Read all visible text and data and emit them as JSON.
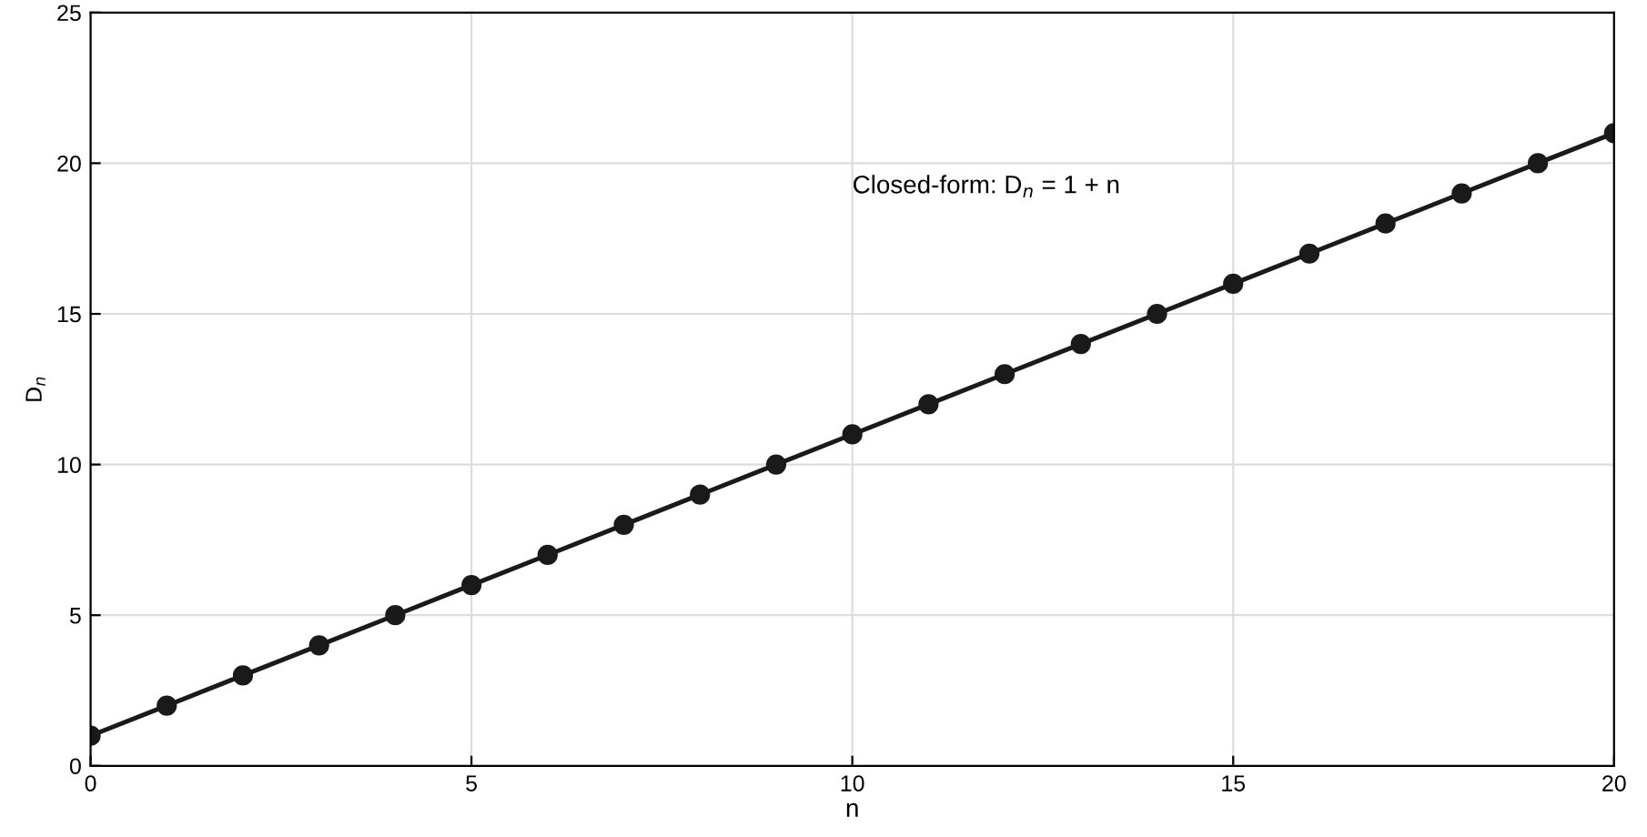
{
  "chart_data": {
    "type": "line",
    "xlabel": "n",
    "ylabel": "D$_{n}$",
    "x": [
      0,
      1,
      2,
      3,
      4,
      5,
      6,
      7,
      8,
      9,
      10,
      11,
      12,
      13,
      14,
      15,
      16,
      17,
      18,
      19,
      20
    ],
    "series": [
      {
        "color": "#1a1a1a",
        "values": [
          1,
          2,
          3,
          4,
          5,
          6,
          7,
          8,
          9,
          10,
          11,
          12,
          13,
          14,
          15,
          16,
          17,
          18,
          19,
          20,
          21
        ]
      }
    ],
    "annotations": [
      "Closed-form: D$_{n}$ = 1 + n"
    ],
    "xlim": [
      0,
      20
    ],
    "ylim": [
      0,
      25
    ],
    "xticks": [
      0,
      5,
      10,
      15,
      20
    ],
    "yticks": [
      0,
      5,
      10,
      15,
      20,
      25
    ],
    "grid": true,
    "marker": "circle",
    "line_style": "solid"
  }
}
